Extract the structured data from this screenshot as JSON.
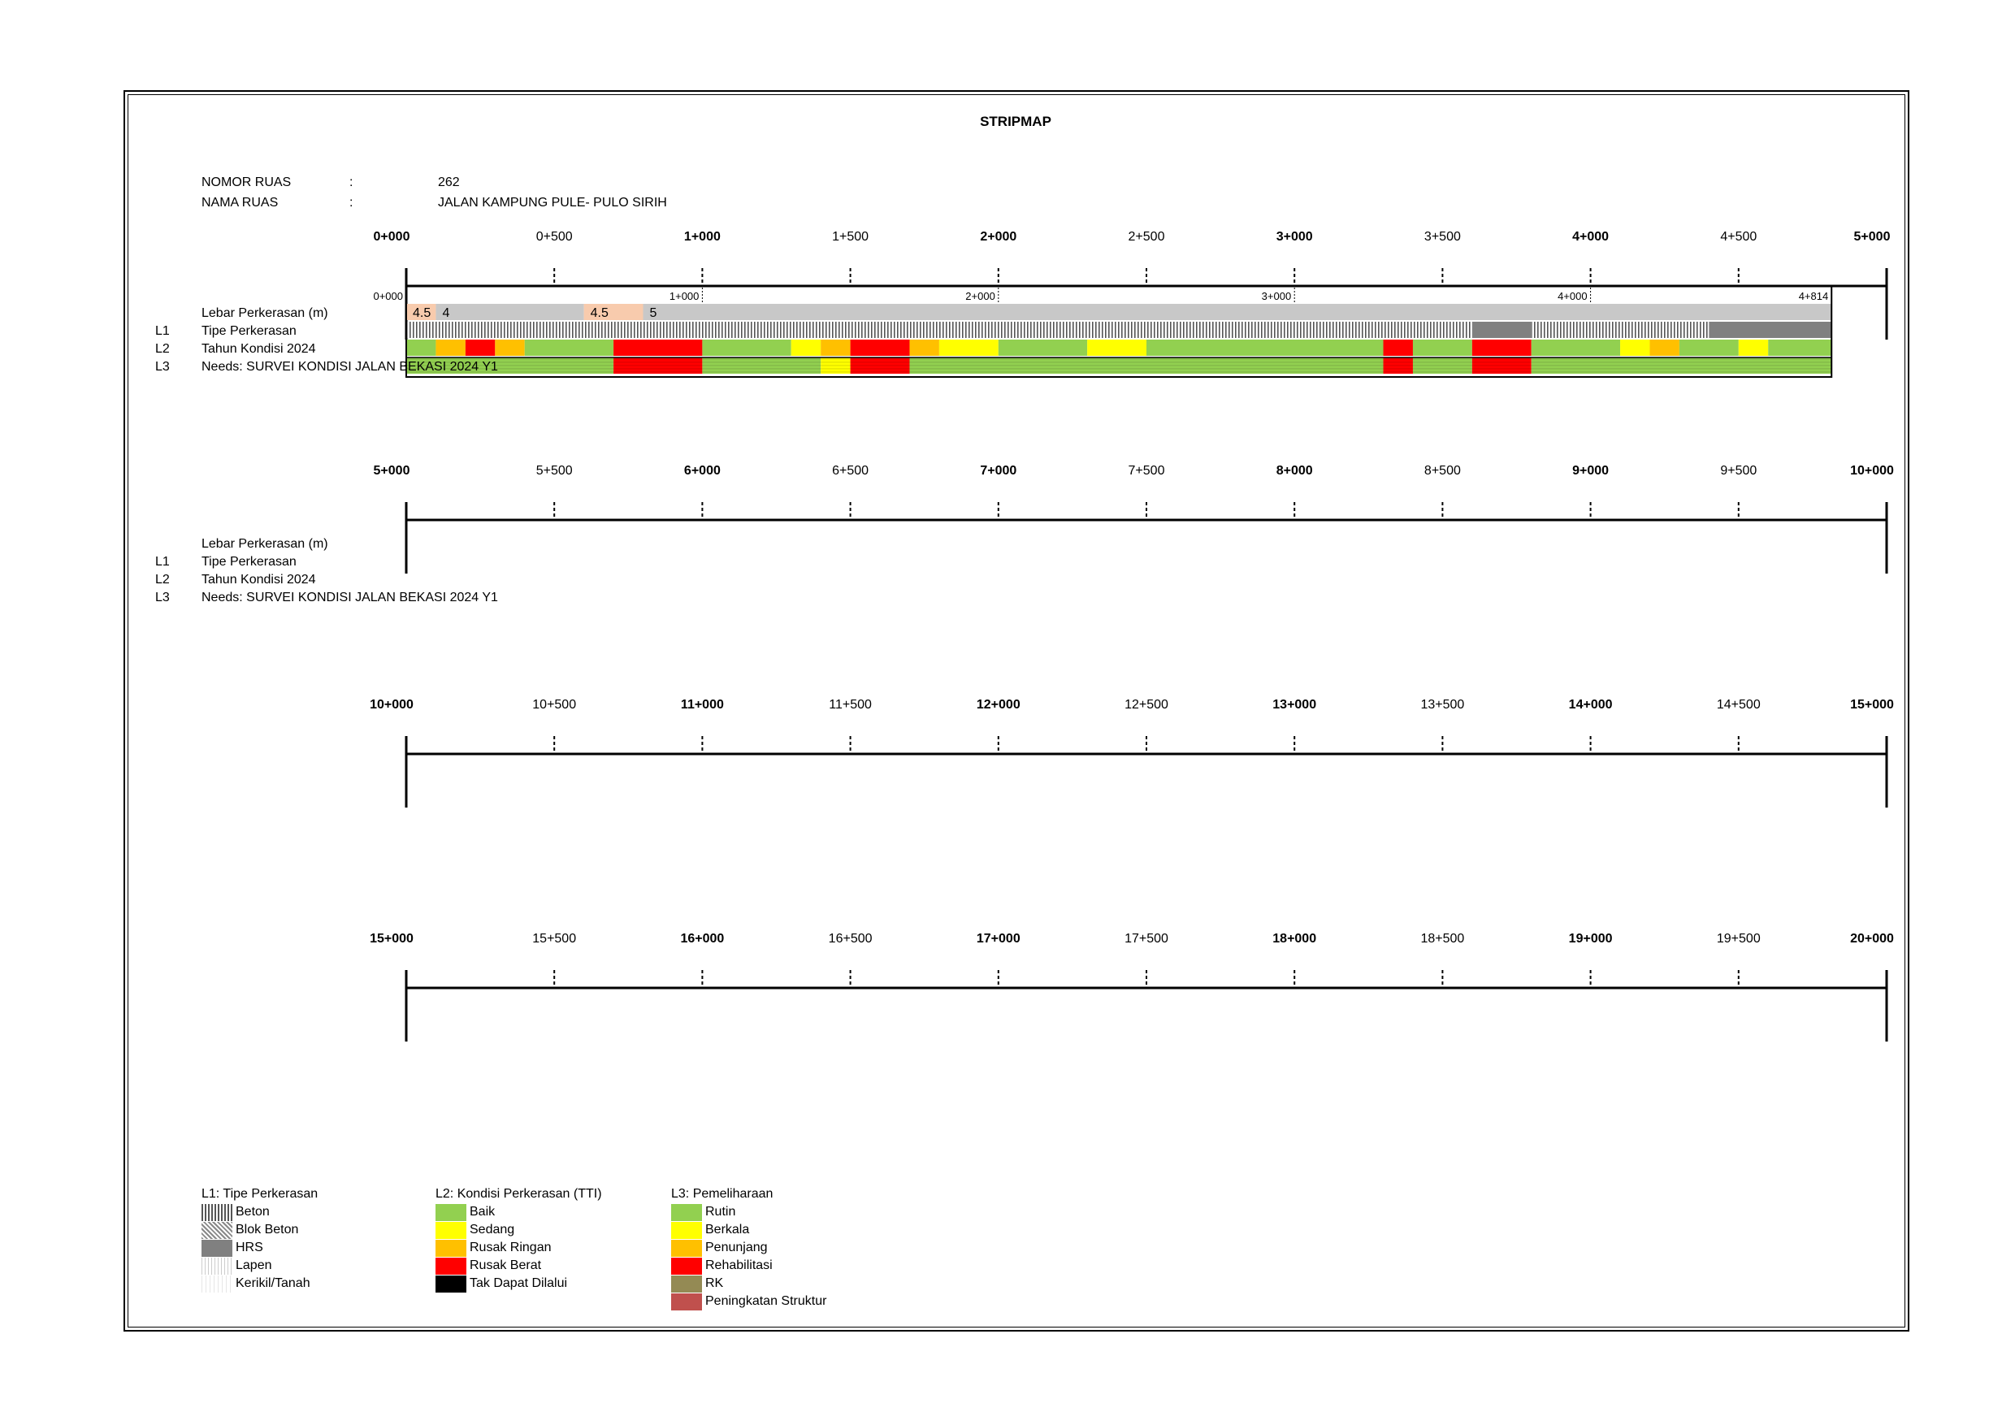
{
  "title": "STRIPMAP",
  "header": {
    "nomor_label": "NOMOR RUAS",
    "nomor_sep": ":",
    "nomor_value": "262",
    "nama_label": "NAMA RUAS",
    "nama_sep": ":",
    "nama_value": "JALAN KAMPUNG PULE- PULO SIRIH"
  },
  "row_labels": {
    "lebar": "Lebar Perkerasan (m)",
    "l1_code": "L1",
    "l1": "Tipe Perkerasan",
    "l2_code": "L2",
    "l2": "Tahun Kondisi 2024",
    "l3_code": "L3",
    "l3": "Needs: SURVEI KONDISI JALAN BEKASI 2024 Y1"
  },
  "colors": {
    "baik": "#92D050",
    "sedang": "#FFFF00",
    "rusak_ringan": "#FFC000",
    "rusak_berat": "#FF0000",
    "tak_dapat": "#000000",
    "rk": "#948A54",
    "peningkatan": "#C0504D",
    "width_orange": "#F8CBAD",
    "width_grey": "#C8C8C8",
    "hrs": "#808080"
  },
  "panels": [
    {
      "ticks": [
        "0+000",
        "0+500",
        "1+000",
        "1+500",
        "2+000",
        "2+500",
        "3+000",
        "3+500",
        "4+000",
        "4+500",
        "5+000"
      ]
    },
    {
      "ticks": [
        "5+000",
        "5+500",
        "6+000",
        "6+500",
        "7+000",
        "7+500",
        "8+000",
        "8+500",
        "9+000",
        "9+500",
        "10+000"
      ]
    },
    {
      "ticks": [
        "10+000",
        "10+500",
        "11+000",
        "11+500",
        "12+000",
        "12+500",
        "13+000",
        "13+500",
        "14+000",
        "14+500",
        "15+000"
      ]
    },
    {
      "ticks": [
        "15+000",
        "15+500",
        "16+000",
        "16+500",
        "17+000",
        "17+500",
        "18+000",
        "18+500",
        "19+000",
        "19+500",
        "20+000"
      ]
    }
  ],
  "road": {
    "length_label": "4+814",
    "inner_ticks": [
      "0+000",
      "1+000",
      "2+000",
      "3+000",
      "4+000"
    ],
    "end_km": 4.814,
    "width_segments": [
      {
        "from": 0.0,
        "to": 0.1,
        "value": "4.5",
        "type": "orange"
      },
      {
        "from": 0.1,
        "to": 0.6,
        "value": "4",
        "type": "grey"
      },
      {
        "from": 0.6,
        "to": 0.8,
        "value": "4.5",
        "type": "orange"
      },
      {
        "from": 0.8,
        "to": 4.814,
        "value": "5",
        "type": "grey"
      }
    ],
    "pavement_segments": [
      {
        "from": 0.0,
        "to": 3.6,
        "type": "beton"
      },
      {
        "from": 3.6,
        "to": 3.8,
        "type": "hrs"
      },
      {
        "from": 3.8,
        "to": 4.4,
        "type": "beton"
      },
      {
        "from": 4.4,
        "to": 4.814,
        "type": "hrs"
      }
    ],
    "condition_segments": [
      {
        "from": 0.0,
        "to": 0.1,
        "type": "baik"
      },
      {
        "from": 0.1,
        "to": 0.2,
        "type": "rusak_ringan"
      },
      {
        "from": 0.2,
        "to": 0.3,
        "type": "rusak_berat"
      },
      {
        "from": 0.3,
        "to": 0.4,
        "type": "rusak_ringan"
      },
      {
        "from": 0.4,
        "to": 0.7,
        "type": "baik"
      },
      {
        "from": 0.7,
        "to": 1.0,
        "type": "rusak_berat"
      },
      {
        "from": 1.0,
        "to": 1.3,
        "type": "baik"
      },
      {
        "from": 1.3,
        "to": 1.4,
        "type": "sedang"
      },
      {
        "from": 1.4,
        "to": 1.5,
        "type": "rusak_ringan"
      },
      {
        "from": 1.5,
        "to": 1.7,
        "type": "rusak_berat"
      },
      {
        "from": 1.7,
        "to": 1.8,
        "type": "rusak_ringan"
      },
      {
        "from": 1.8,
        "to": 2.0,
        "type": "sedang"
      },
      {
        "from": 2.0,
        "to": 2.3,
        "type": "baik"
      },
      {
        "from": 2.3,
        "to": 2.5,
        "type": "sedang"
      },
      {
        "from": 2.5,
        "to": 3.3,
        "type": "baik"
      },
      {
        "from": 3.3,
        "to": 3.4,
        "type": "rusak_berat"
      },
      {
        "from": 3.4,
        "to": 3.6,
        "type": "baik"
      },
      {
        "from": 3.6,
        "to": 3.8,
        "type": "rusak_berat"
      },
      {
        "from": 3.8,
        "to": 4.1,
        "type": "baik"
      },
      {
        "from": 4.1,
        "to": 4.2,
        "type": "sedang"
      },
      {
        "from": 4.2,
        "to": 4.3,
        "type": "rusak_ringan"
      },
      {
        "from": 4.3,
        "to": 4.5,
        "type": "baik"
      },
      {
        "from": 4.5,
        "to": 4.6,
        "type": "sedang"
      },
      {
        "from": 4.6,
        "to": 4.814,
        "type": "baik"
      }
    ],
    "needs_segments": [
      {
        "from": 0.0,
        "to": 0.7,
        "type": "baik"
      },
      {
        "from": 0.7,
        "to": 1.0,
        "type": "rusak_berat"
      },
      {
        "from": 1.0,
        "to": 1.4,
        "type": "baik"
      },
      {
        "from": 1.4,
        "to": 1.5,
        "type": "sedang"
      },
      {
        "from": 1.5,
        "to": 1.7,
        "type": "rusak_berat"
      },
      {
        "from": 1.7,
        "to": 3.3,
        "type": "baik"
      },
      {
        "from": 3.3,
        "to": 3.4,
        "type": "rusak_berat"
      },
      {
        "from": 3.4,
        "to": 3.6,
        "type": "baik"
      },
      {
        "from": 3.6,
        "to": 3.8,
        "type": "rusak_berat"
      },
      {
        "from": 3.8,
        "to": 4.814,
        "type": "baik"
      }
    ]
  },
  "legend": {
    "l1": {
      "title": "L1: Tipe Perkerasan",
      "items": [
        {
          "label": "Beton",
          "pattern": "beton"
        },
        {
          "label": "Blok Beton",
          "pattern": "blok"
        },
        {
          "label": "HRS",
          "pattern": "hrs"
        },
        {
          "label": "Lapen",
          "pattern": "lapen"
        },
        {
          "label": "Kerikil/Tanah",
          "pattern": "kerikil"
        }
      ]
    },
    "l2": {
      "title": "L2: Kondisi Perkerasan (TTI)",
      "items": [
        {
          "label": "Baik",
          "color": "#92D050"
        },
        {
          "label": "Sedang",
          "color": "#FFFF00"
        },
        {
          "label": "Rusak Ringan",
          "color": "#FFC000"
        },
        {
          "label": "Rusak Berat",
          "color": "#FF0000"
        },
        {
          "label": "Tak Dapat Dilalui",
          "color": "#000000"
        }
      ]
    },
    "l3": {
      "title": "L3: Pemeliharaan",
      "items": [
        {
          "label": "Rutin",
          "color": "#92D050"
        },
        {
          "label": "Berkala",
          "color": "#FFFF00"
        },
        {
          "label": "Penunjang",
          "color": "#FFC000"
        },
        {
          "label": "Rehabilitasi",
          "color": "#FF0000"
        },
        {
          "label": "RK",
          "color": "#948A54"
        },
        {
          "label": "Peningkatan Struktur",
          "color": "#C0504D"
        }
      ]
    }
  }
}
